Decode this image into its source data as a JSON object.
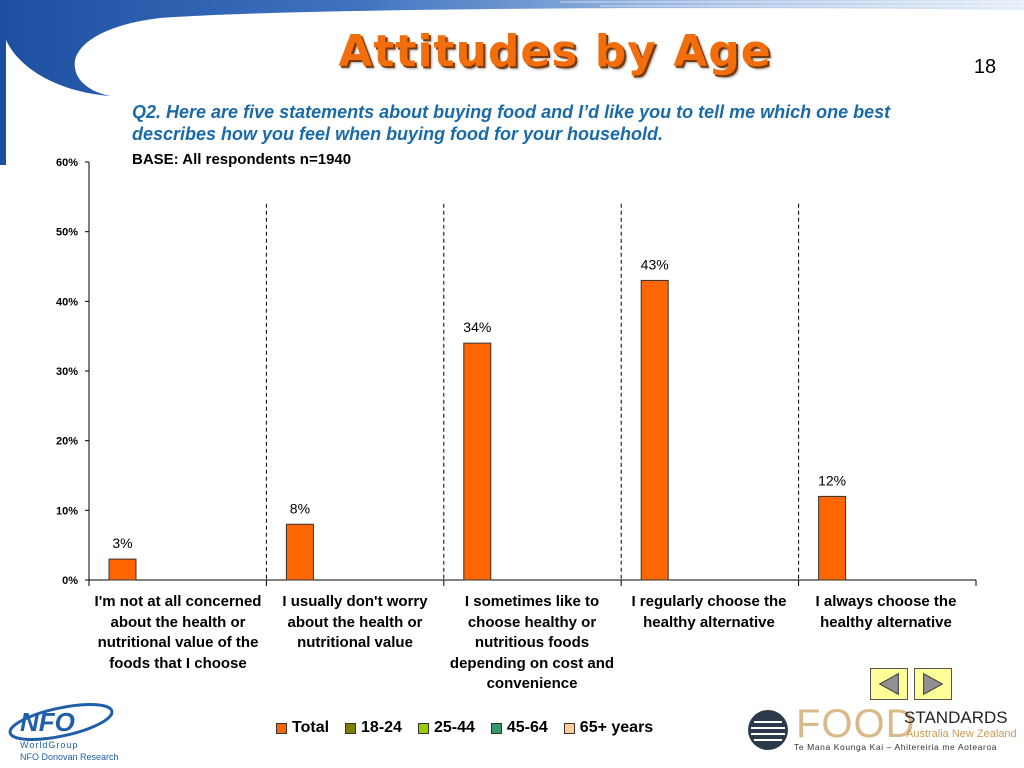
{
  "slide": {
    "title": "Attitudes by Age",
    "page_number": "18",
    "question": "Q2. Here are five statements about buying food and I’d like you to tell me which one best describes how you feel when buying food for your household.",
    "base": "BASE: All respondents n=1940"
  },
  "chart_data": {
    "type": "bar",
    "categories": [
      "I'm not at all concerned about the health or nutritional value of the foods that I choose",
      "I usually don't worry about the health or nutritional value",
      "I sometimes like to choose healthy or nutritious foods depending on cost and convenience",
      "I regularly choose the healthy alternative",
      "I always choose the healthy alternative"
    ],
    "series": [
      {
        "name": "Total",
        "values": [
          3,
          8,
          34,
          43,
          12
        ],
        "color": "#ff6600"
      },
      {
        "name": "18-24",
        "values": [
          null,
          null,
          null,
          null,
          null
        ],
        "color": "#808000"
      },
      {
        "name": "25-44",
        "values": [
          null,
          null,
          null,
          null,
          null
        ],
        "color": "#99cc00"
      },
      {
        "name": "45-64",
        "values": [
          null,
          null,
          null,
          null,
          null
        ],
        "color": "#339966"
      },
      {
        "name": "65+ years",
        "values": [
          null,
          null,
          null,
          null,
          null
        ],
        "color": "#ffcc99"
      }
    ],
    "data_labels": [
      "3%",
      "8%",
      "34%",
      "43%",
      "12%"
    ],
    "y_ticks": [
      "0%",
      "10%",
      "20%",
      "30%",
      "40%",
      "50%",
      "60%"
    ],
    "ylim": [
      0,
      60
    ],
    "grid": false,
    "legend_position": "bottom"
  },
  "legend": [
    {
      "label": "Total",
      "color": "#ff6600"
    },
    {
      "label": "18-24",
      "color": "#808000"
    },
    {
      "label": "25-44",
      "color": "#99cc00"
    },
    {
      "label": "45-64",
      "color": "#339966"
    },
    {
      "label": "65+ years",
      "color": "#ffcc99"
    }
  ],
  "nav": {
    "prev_icon": "triangle-left-icon",
    "next_icon": "triangle-right-icon"
  },
  "logos": {
    "nfo_mark": "NFO",
    "nfo_worldgroup": "WorldGroup",
    "nfo_donovan": "NFO Donovan Research",
    "fs_food": "FOOD",
    "fs_standards": "STANDARDS",
    "fs_region": "Australia New Zealand",
    "fs_maori": "Te Mana Kounga Kai – Ahitereiria me Aotearoa"
  }
}
